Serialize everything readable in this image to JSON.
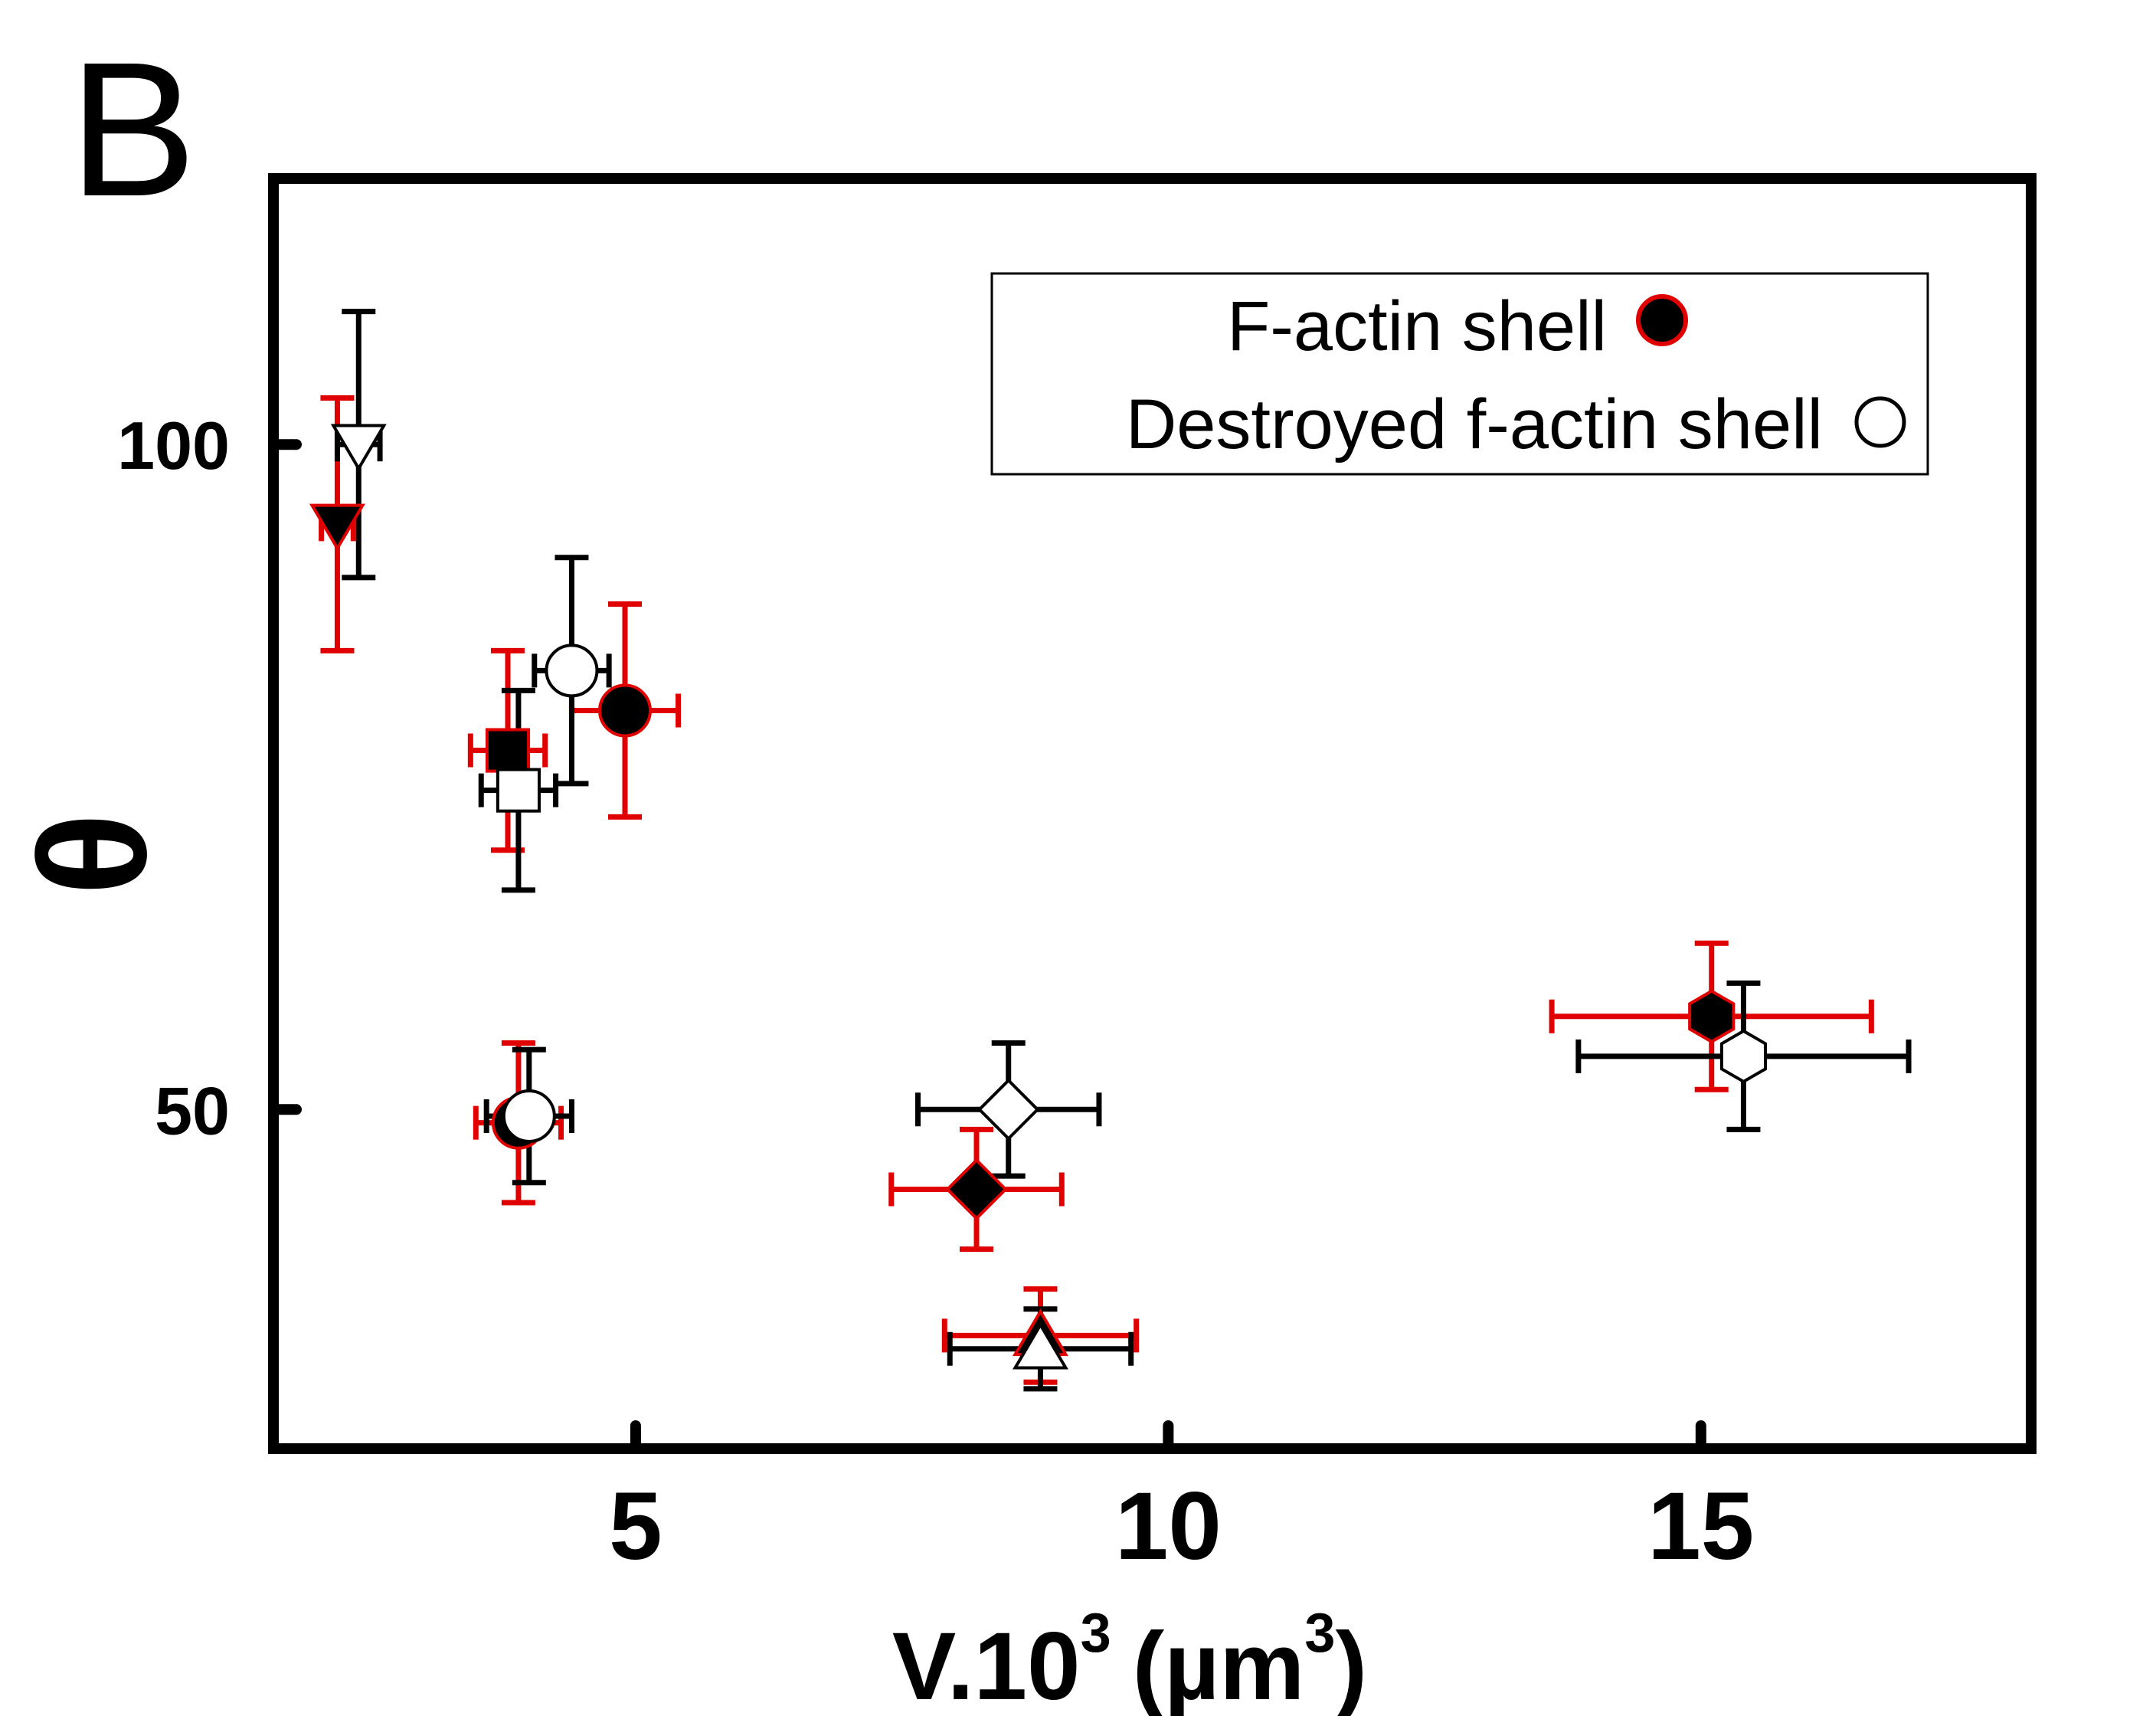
{
  "panel_label": "B",
  "chart_data": {
    "type": "scatter",
    "xlabel": "V.10",
    "xlabel_sup": "3",
    "xlabel_unit": "(µm",
    "xlabel_unit_sup": "3",
    "xlabel_close": ")",
    "ylabel": "θ",
    "xlim": [
      1.6,
      18.1
    ],
    "ylim": [
      24.5,
      120
    ],
    "xticks": [
      5,
      10,
      15
    ],
    "yticks": [
      50,
      100
    ],
    "xtick_labels": [
      "5",
      "10",
      "15"
    ],
    "ytick_labels": [
      "50",
      "100"
    ],
    "grid": false,
    "legend_position": "top-right",
    "legend": [
      {
        "label": "F-actin shell",
        "symbol": "circle",
        "fill": "#000000",
        "edge": "#e00000"
      },
      {
        "label": "Destroyed f-actin shell",
        "symbol": "circle",
        "fill": "#ffffff",
        "edge": "#000000"
      }
    ],
    "colors": {
      "intact_errorbar": "#e00000",
      "destroyed_errorbar": "#000000",
      "frame": "#000000"
    },
    "series": [
      {
        "name": "F-actin shell",
        "filled": true,
        "points": [
          {
            "marker": "triangle-down",
            "x": 2.2,
            "y": 94,
            "xerr": 0.15,
            "yerr": 9.5
          },
          {
            "marker": "square",
            "x": 3.8,
            "y": 77,
            "xerr": 0.35,
            "yerr": 7.5
          },
          {
            "marker": "circle",
            "x": 4.9,
            "y": 80,
            "xerr": 0.5,
            "yerr": 8
          },
          {
            "marker": "circle",
            "x": 3.9,
            "y": 49,
            "xerr": 0.4,
            "yerr": 6
          },
          {
            "marker": "diamond",
            "x": 8.2,
            "y": 44,
            "xerr": 0.8,
            "yerr": 4.5
          },
          {
            "marker": "triangle-up",
            "x": 8.8,
            "y": 33,
            "xerr": 0.9,
            "yerr": 3.5
          },
          {
            "marker": "hexagon",
            "x": 15.1,
            "y": 57,
            "xerr": 1.5,
            "yerr": 5.5
          }
        ]
      },
      {
        "name": "Destroyed f-actin shell",
        "filled": false,
        "points": [
          {
            "marker": "triangle-down",
            "x": 2.4,
            "y": 100,
            "xerr": 0.2,
            "yerr": 10
          },
          {
            "marker": "square",
            "x": 3.9,
            "y": 74,
            "xerr": 0.35,
            "yerr": 7.5
          },
          {
            "marker": "circle",
            "x": 4.4,
            "y": 83,
            "xerr": 0.35,
            "yerr": 8.5
          },
          {
            "marker": "circle",
            "x": 4.0,
            "y": 49.5,
            "xerr": 0.4,
            "yerr": 5
          },
          {
            "marker": "diamond",
            "x": 8.5,
            "y": 50,
            "xerr": 0.85,
            "yerr": 5
          },
          {
            "marker": "triangle-up",
            "x": 8.8,
            "y": 32,
            "xerr": 0.85,
            "yerr": 3
          },
          {
            "marker": "hexagon",
            "x": 15.4,
            "y": 54,
            "xerr": 1.55,
            "yerr": 5.5
          }
        ]
      }
    ]
  }
}
